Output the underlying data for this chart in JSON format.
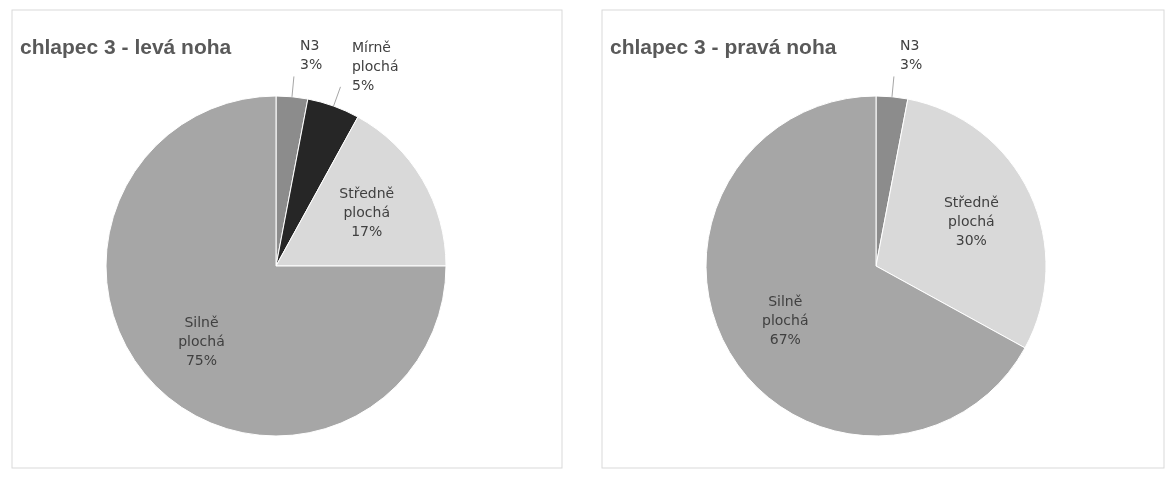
{
  "chart_data": [
    {
      "type": "pie",
      "title": "chlapec 3 - levá noha",
      "categories": [
        "N3",
        "Mírně plochá",
        "Středně plochá",
        "Silně plochá"
      ],
      "values": [
        3,
        5,
        17,
        75
      ],
      "value_labels": [
        "3%",
        "5%",
        "17%",
        "75%"
      ],
      "colors": [
        "#8c8c8c",
        "#262626",
        "#d9d9d9",
        "#a6a6a6"
      ]
    },
    {
      "type": "pie",
      "title": "chlapec 3 - pravá noha",
      "categories": [
        "N3",
        "Středně plochá",
        "Silně plochá"
      ],
      "values": [
        3,
        30,
        67
      ],
      "value_labels": [
        "3%",
        "30%",
        "67%"
      ],
      "colors": [
        "#8c8c8c",
        "#d9d9d9",
        "#a6a6a6"
      ]
    }
  ]
}
